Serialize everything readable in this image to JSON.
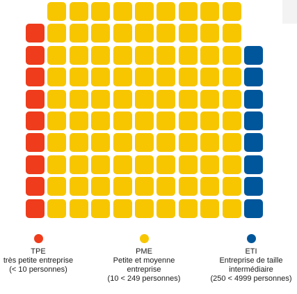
{
  "colors": {
    "tpe": "#ee3c1c",
    "pme": "#f7c600",
    "eti": "#00569a"
  },
  "grid_rows": [
    [
      "",
      "pme",
      "pme",
      "pme",
      "pme",
      "pme",
      "pme",
      "pme",
      "pme",
      "pme",
      ""
    ],
    [
      "tpe",
      "pme",
      "pme",
      "pme",
      "pme",
      "pme",
      "pme",
      "pme",
      "pme",
      "pme",
      ""
    ],
    [
      "tpe",
      "pme",
      "pme",
      "pme",
      "pme",
      "pme",
      "pme",
      "pme",
      "pme",
      "pme",
      "eti"
    ],
    [
      "tpe",
      "pme",
      "pme",
      "pme",
      "pme",
      "pme",
      "pme",
      "pme",
      "pme",
      "pme",
      "eti"
    ],
    [
      "tpe",
      "pme",
      "pme",
      "pme",
      "pme",
      "pme",
      "pme",
      "pme",
      "pme",
      "pme",
      "eti"
    ],
    [
      "tpe",
      "pme",
      "pme",
      "pme",
      "pme",
      "pme",
      "pme",
      "pme",
      "pme",
      "pme",
      "eti"
    ],
    [
      "tpe",
      "pme",
      "pme",
      "pme",
      "pme",
      "pme",
      "pme",
      "pme",
      "pme",
      "pme",
      "eti"
    ],
    [
      "tpe",
      "pme",
      "pme",
      "pme",
      "pme",
      "pme",
      "pme",
      "pme",
      "pme",
      "pme",
      "eti"
    ],
    [
      "tpe",
      "pme",
      "pme",
      "pme",
      "pme",
      "pme",
      "pme",
      "pme",
      "pme",
      "pme",
      "eti"
    ],
    [
      "tpe",
      "pme",
      "pme",
      "pme",
      "pme",
      "pme",
      "pme",
      "pme",
      "pme",
      "pme",
      "eti"
    ]
  ],
  "legend": {
    "tpe": {
      "abbr": "TPE",
      "desc": "très petite entreprise\n(< 10 personnes)"
    },
    "pme": {
      "abbr": "PME",
      "desc": "Petite et moyenne\nentreprise\n(10 < 249 personnes)"
    },
    "eti": {
      "abbr": "ETI",
      "desc": "Entreprise de taille\nintermédiaire\n(250 < 4999 personnes)"
    }
  }
}
